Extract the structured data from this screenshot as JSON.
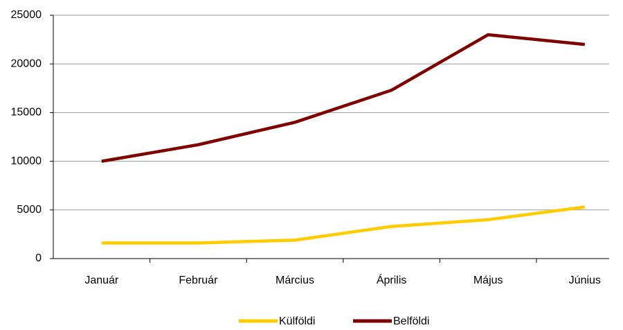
{
  "chart_data": {
    "type": "line",
    "categories": [
      "Január",
      "Február",
      "Március",
      "Április",
      "Május",
      "Június"
    ],
    "series": [
      {
        "name": "Külföldi",
        "color": "#ffcc00",
        "values": [
          1600,
          1600,
          1900,
          3300,
          4000,
          5300
        ]
      },
      {
        "name": "Belföldi",
        "color": "#800000",
        "values": [
          10000,
          11700,
          14000,
          17300,
          23000,
          22000
        ]
      }
    ],
    "ylim": [
      0,
      25000
    ],
    "yticks": [
      0,
      5000,
      10000,
      15000,
      20000,
      25000
    ],
    "grid": true,
    "legend": "bottom"
  }
}
